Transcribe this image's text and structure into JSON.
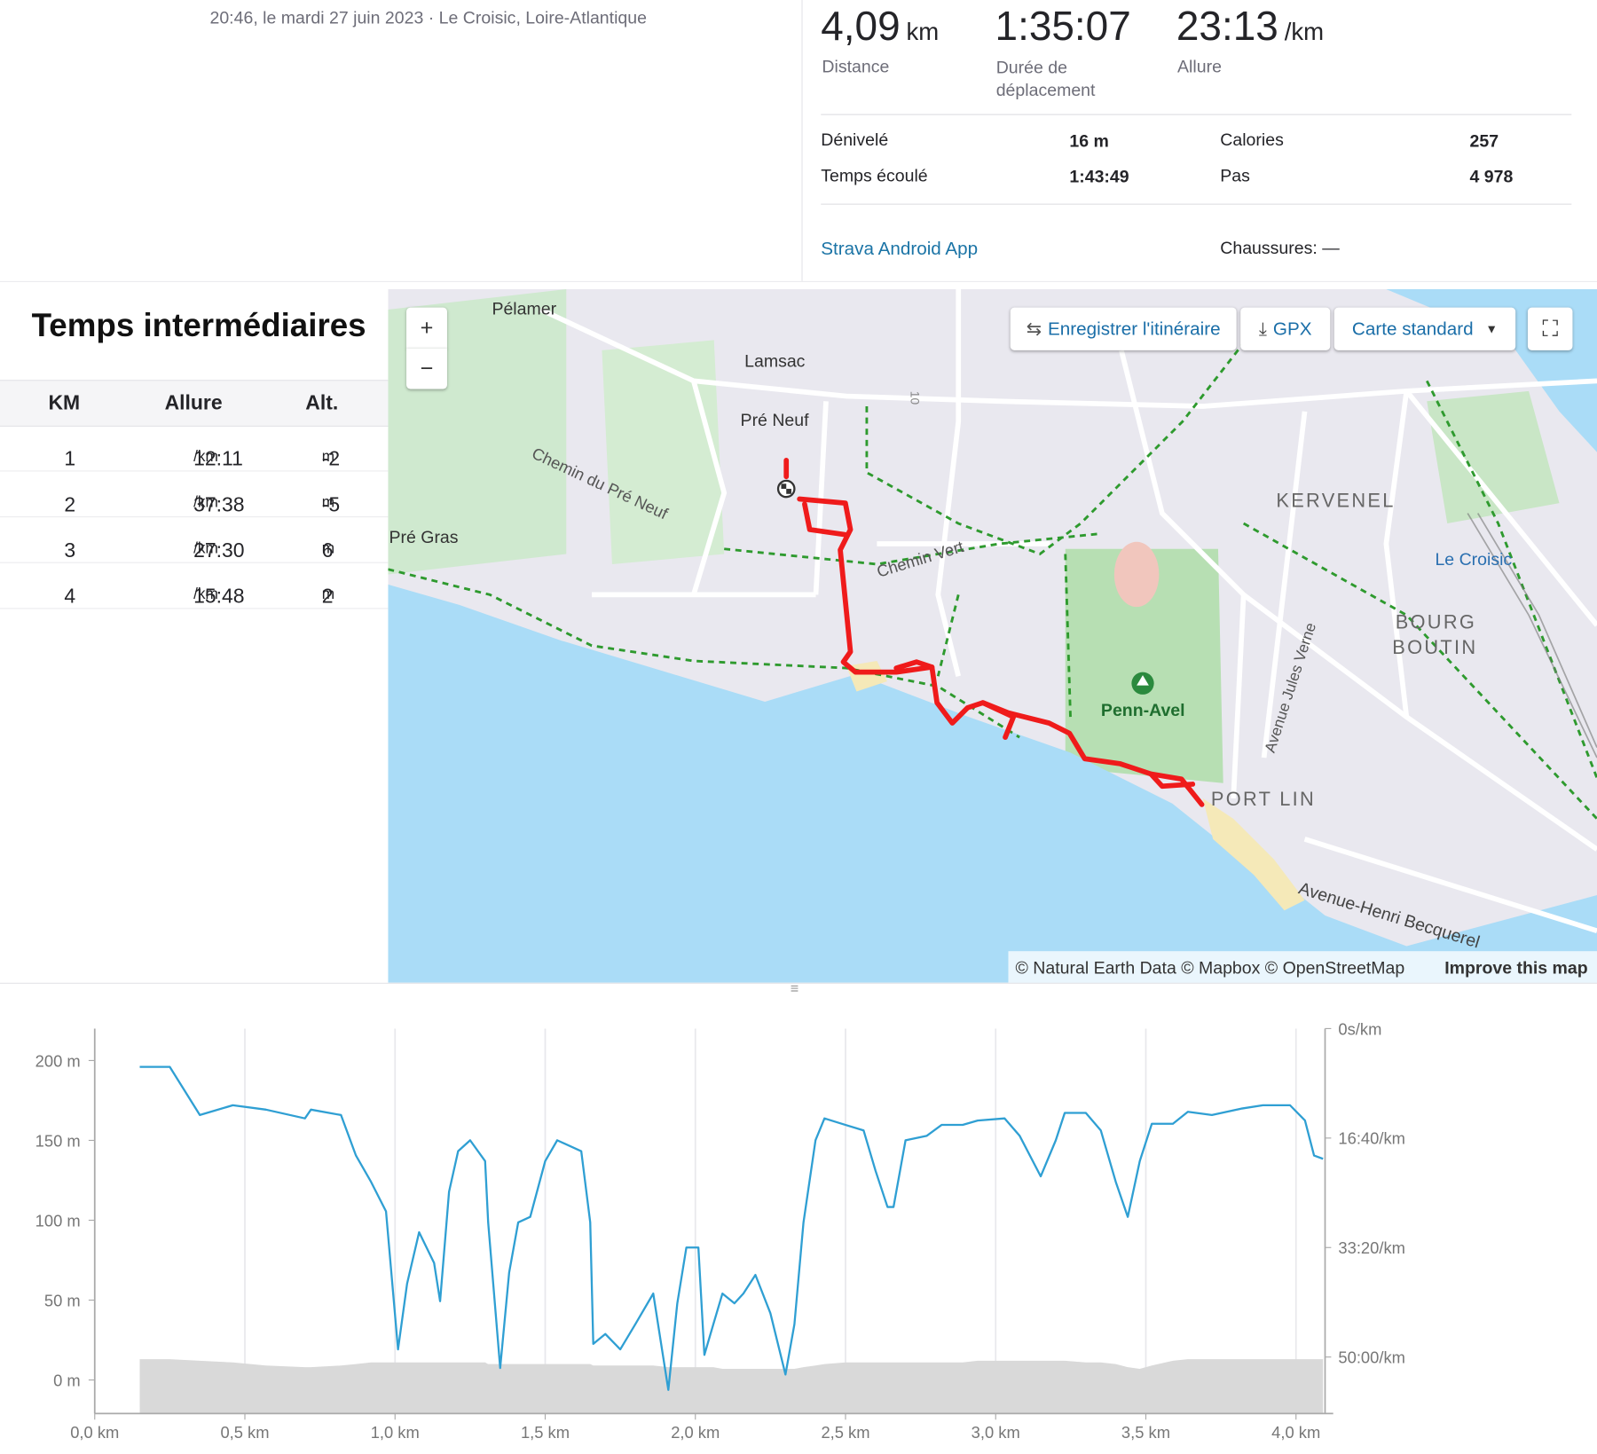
{
  "header": {
    "datetime_location": "20:46, le mardi 27 juin 2023 · Le Croisic, Loire-Atlantique"
  },
  "stats": {
    "main": [
      {
        "value": "4,09",
        "unit": "km",
        "label": "Distance"
      },
      {
        "value": "1:35:07",
        "label": "Durée de déplacement"
      },
      {
        "value": "23:13",
        "unit": "/km",
        "label": "Allure"
      }
    ],
    "details": [
      {
        "label": "Dénivelé",
        "value": "16 m"
      },
      {
        "label": "Calories",
        "value": "257"
      },
      {
        "label": "Temps écoulé",
        "value": "1:43:49"
      },
      {
        "label": "Pas",
        "value": "4 978"
      }
    ],
    "device": "Strava Android App",
    "shoes": "Chaussures: —"
  },
  "splits": {
    "title": "Temps intermédiaires",
    "columns": [
      "KM",
      "Allure",
      "Alt."
    ],
    "rows": [
      {
        "km": 1,
        "pace": "12:11",
        "pace_unit": "/km",
        "alt": "-2",
        "alt_unit": "m"
      },
      {
        "km": 2,
        "pace": "37:38",
        "pace_unit": "/km",
        "alt": "-5",
        "alt_unit": "m"
      },
      {
        "km": 3,
        "pace": "27:30",
        "pace_unit": "/km",
        "alt": "6",
        "alt_unit": "m"
      },
      {
        "km": 4,
        "pace": "15:48",
        "pace_unit": "/km",
        "alt": "2",
        "alt_unit": "m"
      }
    ]
  },
  "map": {
    "controls": {
      "zoom_in": "+",
      "zoom_out": "−",
      "save_route": "Enregistrer l'itinéraire",
      "gpx": "GPX",
      "style": "Carte standard"
    },
    "labels": {
      "pelamer": "Pélamer",
      "lamsac": "Lamsac",
      "pre_neuf": "Pré Neuf",
      "chemin_pre_neuf": "Chemin du Pré Neuf",
      "pre_gras": "Pré Gras",
      "chemin_vert": "Chemin Vert",
      "kervenel": "KERVENEL",
      "le_croisic": "Le Croisic",
      "bourg": "BOURG",
      "boutin": "BOUTIN",
      "penn_avel": "Penn-Avel",
      "jules_verne": "Avenue Jules Verne",
      "port_lin": "PORT LIN",
      "becquerel": "Avenue-Henri Becquerel",
      "road": "10"
    },
    "attribution": "© Natural Earth Data © Mapbox © OpenStreetMap",
    "improve": "Improve this map"
  },
  "chart_data": {
    "type": "line",
    "x": [
      0.15,
      0.25,
      0.35,
      0.46,
      0.57,
      0.7,
      0.72,
      0.82,
      0.87,
      0.92,
      0.97,
      1.01,
      1.04,
      1.08,
      1.13,
      1.15,
      1.18,
      1.21,
      1.25,
      1.3,
      1.31,
      1.35,
      1.38,
      1.41,
      1.45,
      1.5,
      1.54,
      1.62,
      1.65,
      1.66,
      1.7,
      1.75,
      1.8,
      1.86,
      1.91,
      1.94,
      1.97,
      2.01,
      2.03,
      2.06,
      2.09,
      2.13,
      2.16,
      2.2,
      2.25,
      2.3,
      2.33,
      2.36,
      2.4,
      2.43,
      2.5,
      2.56,
      2.6,
      2.64,
      2.66,
      2.7,
      2.77,
      2.82,
      2.89,
      2.94,
      3.03,
      3.08,
      3.15,
      3.2,
      3.23,
      3.3,
      3.35,
      3.4,
      3.44,
      3.48,
      3.52,
      3.59,
      3.64,
      3.72,
      3.82,
      3.89,
      3.98,
      4.03,
      4.06,
      4.09
    ],
    "series": [
      {
        "color": "#d9d9d9",
        "fill": true,
        "values": [
          13,
          13,
          12,
          11,
          9,
          8,
          8,
          9,
          10,
          11,
          11,
          11,
          11,
          11,
          11,
          11,
          11,
          11,
          11,
          11,
          10,
          10,
          10,
          10,
          10,
          10,
          10,
          10,
          10,
          9,
          9,
          9,
          9,
          9,
          8,
          8,
          8,
          8,
          8,
          8,
          7,
          7,
          7,
          7,
          7,
          7,
          7,
          8,
          9,
          10,
          11,
          11,
          11,
          11,
          11,
          11,
          11,
          11,
          11,
          12,
          12,
          12,
          12,
          12,
          12,
          11,
          11,
          10,
          8,
          7,
          9,
          12,
          13,
          13,
          13,
          13,
          13,
          13,
          13,
          13
        ]
      },
      {
        "color": "#2f9fd3",
        "axis": "y2",
        "values": [
          350,
          350,
          790,
          700,
          740,
          820,
          740,
          790,
          1160,
          1400,
          1670,
          2930,
          2330,
          1860,
          2140,
          2490,
          1490,
          1120,
          1020,
          1210,
          1770,
          3100,
          2230,
          1770,
          1720,
          1210,
          1020,
          1120,
          1770,
          2880,
          2790,
          2930,
          2700,
          2420,
          3300,
          2510,
          2000,
          2000,
          2980,
          2700,
          2420,
          2510,
          2420,
          2250,
          2600,
          3160,
          2700,
          1770,
          1020,
          820,
          880,
          930,
          1300,
          1630,
          1630,
          1020,
          980,
          880,
          880,
          840,
          820,
          980,
          1350,
          1020,
          770,
          770,
          930,
          1400,
          1720,
          1210,
          870,
          870,
          760,
          790,
          730,
          700,
          700,
          840,
          1160,
          1190
        ]
      }
    ],
    "xlim": [
      0,
      4.09
    ],
    "xticks": [
      {
        "value": 0,
        "label": "0,0 km"
      },
      {
        "value": 0.5,
        "label": "0,5 km"
      },
      {
        "value": 1,
        "label": "1,0 km"
      },
      {
        "value": 1.5,
        "label": "1,5 km"
      },
      {
        "value": 2,
        "label": "2,0 km"
      },
      {
        "value": 2.5,
        "label": "2,5 km"
      },
      {
        "value": 3,
        "label": "3,0 km"
      },
      {
        "value": 3.5,
        "label": "3,5 km"
      },
      {
        "value": 4,
        "label": "4,0 km"
      }
    ],
    "ylim": [
      -21,
      220
    ],
    "yticks": [
      {
        "value": 0,
        "label": "0 m"
      },
      {
        "value": 50,
        "label": "50 m"
      },
      {
        "value": 100,
        "label": "100 m"
      },
      {
        "value": 150,
        "label": "150 m"
      },
      {
        "value": 200,
        "label": "200 m"
      }
    ],
    "y2lim": [
      3516,
      0
    ],
    "y2ticks": [
      {
        "value": 0,
        "label": "0s/km"
      },
      {
        "value": 1000,
        "label": "16:40/km"
      },
      {
        "value": 2000,
        "label": "33:20/km"
      },
      {
        "value": 3000,
        "label": "50:00/km"
      }
    ],
    "grid": true
  }
}
